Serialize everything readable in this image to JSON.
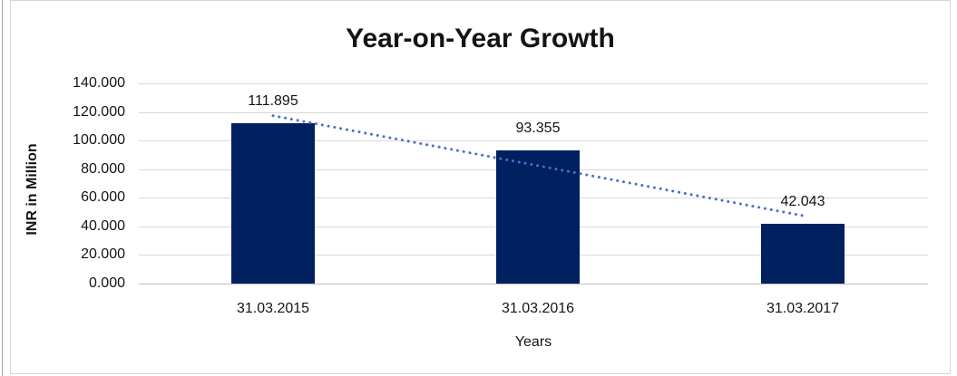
{
  "chart_data": {
    "type": "bar",
    "title": "Year-on-Year Growth",
    "xlabel": "Years",
    "ylabel": "INR in Million",
    "categories": [
      "31.03.2015",
      "31.03.2016",
      "31.03.2017"
    ],
    "series": [
      {
        "name": "INR in Million",
        "values": [
          111.895,
          93.355,
          42.043
        ]
      }
    ],
    "data_labels": [
      "111.895",
      "93.355",
      "42.043"
    ],
    "y_ticks": [
      {
        "value": 0,
        "label": "0.000"
      },
      {
        "value": 20,
        "label": "20.000"
      },
      {
        "value": 40,
        "label": "40.000"
      },
      {
        "value": 60,
        "label": "60.000"
      },
      {
        "value": 80,
        "label": "80.000"
      },
      {
        "value": 100,
        "label": "100.000"
      },
      {
        "value": 120,
        "label": "120.000"
      },
      {
        "value": 140,
        "label": "140.000"
      }
    ],
    "ylim": [
      0,
      140
    ],
    "grid": true,
    "legend": false,
    "trendline": {
      "type": "linear",
      "style": "dotted",
      "start_value": 117.36,
      "end_value": 47.5
    },
    "colors": {
      "bar": "#002060",
      "trendline": "#4472C4",
      "gridline": "#d9d9d9",
      "axis_line": "#bfbfbf",
      "text": "#141414",
      "frame_border": "#d6d6d6",
      "page_edge": "#a6a6a6"
    }
  }
}
